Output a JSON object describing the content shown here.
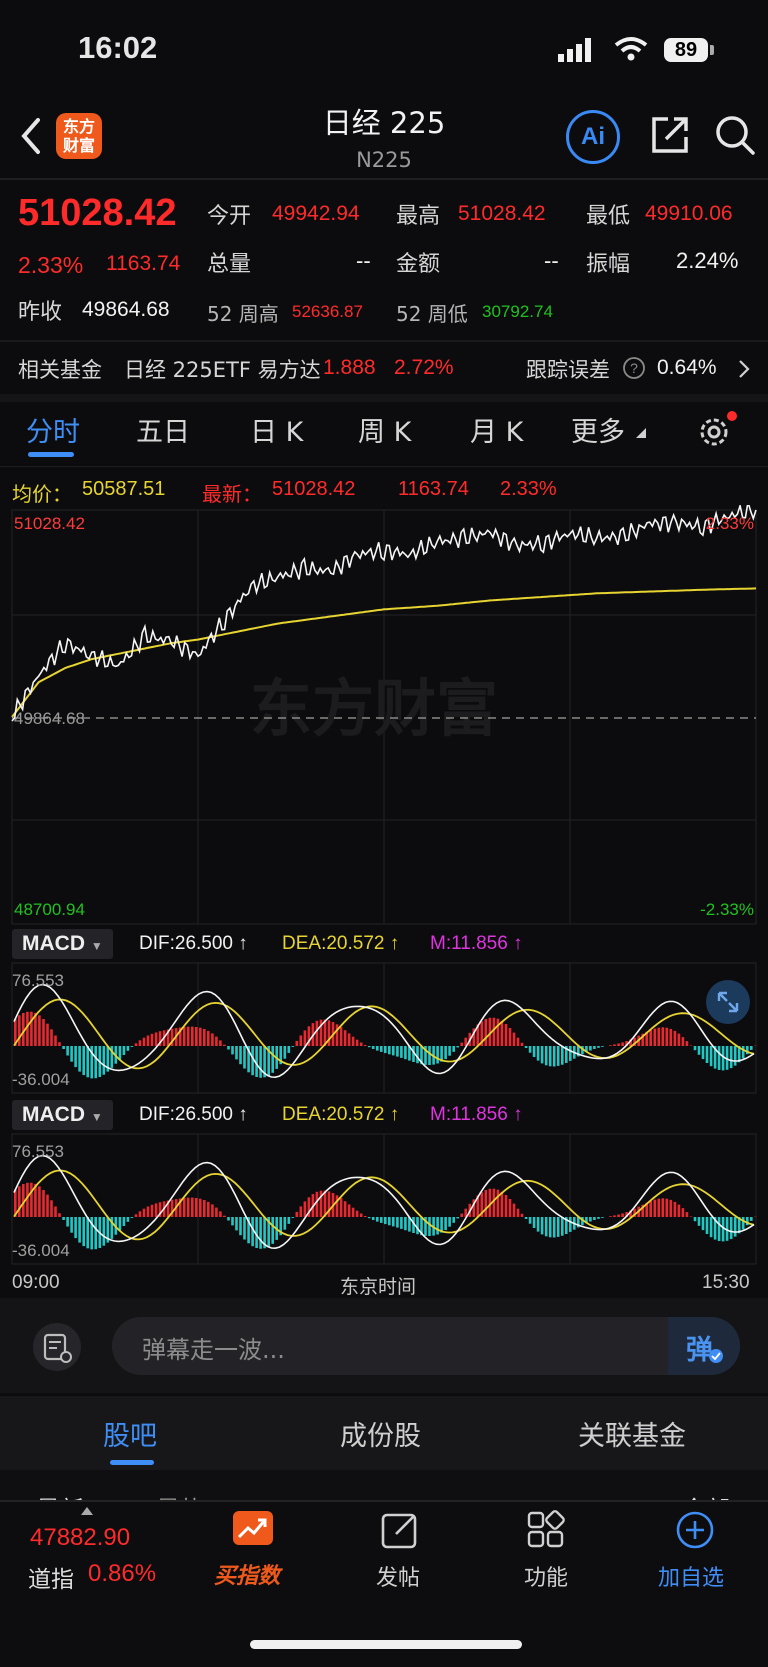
{
  "status_bar": {
    "time": "16:02",
    "battery": "89"
  },
  "header": {
    "title": "日经 225",
    "subtitle": "N225",
    "logo_text_1": "东方",
    "logo_text_2": "财富",
    "ai_label": "Ai"
  },
  "quote": {
    "price": "51028.42",
    "change_pct": "2.33%",
    "change": "1163.74",
    "open_label": "今开",
    "open": "49942.94",
    "high_label": "最高",
    "high": "51028.42",
    "low_label": "最低",
    "low": "49910.06",
    "volume_label": "总量",
    "volume": "--",
    "amount_label": "金额",
    "amount": "--",
    "amplitude_label": "振幅",
    "amplitude": "2.24%",
    "prev_close_label": "昨收",
    "prev_close": "49864.68",
    "w52_high_label": "52 周高",
    "w52_high": "52636.87",
    "w52_low_label": "52 周低",
    "w52_low": "30792.74"
  },
  "fund": {
    "label": "相关基金",
    "name": "日经 225ETF 易方达",
    "price": "1.888",
    "pct": "2.72%",
    "tracking_label": "跟踪误差",
    "tracking_value": "0.64%"
  },
  "tabs": [
    "分时",
    "五日",
    "日 K",
    "周 K",
    "月 K",
    "更多"
  ],
  "chart_info": {
    "avg_label": "均价：",
    "avg": "50587.51",
    "latest_label": "最新：",
    "latest": "51028.42",
    "latest_change": "1163.74",
    "latest_pct": "2.33%"
  },
  "chart_labels": {
    "top_left": "51028.42",
    "top_right": "2.33%",
    "mid_left": "49864.68",
    "bottom_left": "48700.94",
    "bottom_right": "-2.33%",
    "watermark": "东方财富",
    "x_start": "09:00",
    "x_mid": "东京时间",
    "x_end": "15:30"
  },
  "macd": {
    "name": "MACD",
    "dif": "DIF:26.500 ↑",
    "dea": "DEA:20.572 ↑",
    "m": "M:11.856 ↑",
    "top": "76.553",
    "bottom": "-36.004"
  },
  "chart_data": {
    "type": "line",
    "title": "",
    "ylim": [
      48700.94,
      51028.42
    ],
    "reference": 49864.68,
    "series": [
      {
        "name": "最新",
        "values": [
          49864.68,
          50100,
          50280,
          50210,
          50150,
          50320,
          50290,
          50210,
          50410,
          50600,
          50650,
          50700,
          50680,
          50780,
          50800,
          50780,
          50850,
          50870,
          50900,
          50830,
          50840,
          50900,
          50870,
          50880,
          50950,
          50960,
          50930,
          51000,
          51028.42
        ]
      },
      {
        "name": "均价",
        "values": [
          49864.68,
          50060,
          50140,
          50190,
          50220,
          50250,
          50280,
          50300,
          50330,
          50360,
          50390,
          50410,
          50430,
          50450,
          50470,
          50480,
          50490,
          50505,
          50520,
          50530,
          50540,
          50550,
          50560,
          50565,
          50570,
          50575,
          50580,
          50584,
          50587.51
        ]
      }
    ]
  },
  "danmu": {
    "placeholder": "弹幕走一波...",
    "button": "弹"
  },
  "lower_tabs": [
    "股吧",
    "成份股",
    "关联基金"
  ],
  "peek": {
    "left": "最新",
    "mid": "最热",
    "right": "全部"
  },
  "bottom_bar": {
    "ticker_price": "47882.90",
    "ticker_name": "道指",
    "ticker_pct": "0.86%",
    "items": [
      "买指数",
      "发帖",
      "功能",
      "加自选"
    ]
  }
}
